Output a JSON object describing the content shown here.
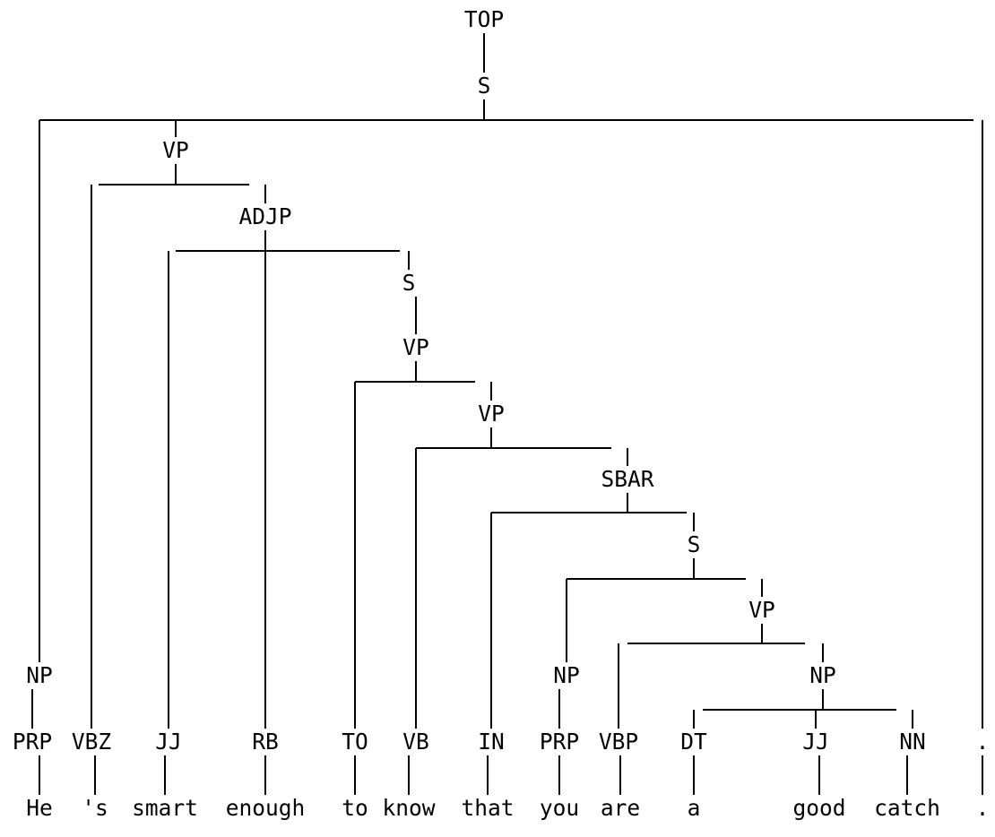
{
  "tree": {
    "nodes": [
      {
        "id": "top",
        "label": "TOP",
        "kind": "phrase"
      },
      {
        "id": "s1",
        "label": "S",
        "kind": "phrase"
      },
      {
        "id": "np_he",
        "label": "NP",
        "kind": "phrase"
      },
      {
        "id": "vp1",
        "label": "VP",
        "kind": "phrase"
      },
      {
        "id": "adjp",
        "label": "ADJP",
        "kind": "phrase"
      },
      {
        "id": "s2",
        "label": "S",
        "kind": "phrase"
      },
      {
        "id": "vp2",
        "label": "VP",
        "kind": "phrase"
      },
      {
        "id": "vp3",
        "label": "VP",
        "kind": "phrase"
      },
      {
        "id": "sbar",
        "label": "SBAR",
        "kind": "phrase"
      },
      {
        "id": "s3",
        "label": "S",
        "kind": "phrase"
      },
      {
        "id": "vp4",
        "label": "VP",
        "kind": "phrase"
      },
      {
        "id": "np_you",
        "label": "NP",
        "kind": "phrase"
      },
      {
        "id": "np_catch",
        "label": "NP",
        "kind": "phrase"
      },
      {
        "id": "t_prp1",
        "label": "PRP",
        "kind": "pos"
      },
      {
        "id": "t_vbz",
        "label": "VBZ",
        "kind": "pos"
      },
      {
        "id": "t_jj1",
        "label": "JJ",
        "kind": "pos"
      },
      {
        "id": "t_rb",
        "label": "RB",
        "kind": "pos"
      },
      {
        "id": "t_to",
        "label": "TO",
        "kind": "pos"
      },
      {
        "id": "t_vb",
        "label": "VB",
        "kind": "pos"
      },
      {
        "id": "t_in",
        "label": "IN",
        "kind": "pos"
      },
      {
        "id": "t_prp2",
        "label": "PRP",
        "kind": "pos"
      },
      {
        "id": "t_vbp",
        "label": "VBP",
        "kind": "pos"
      },
      {
        "id": "t_dt",
        "label": "DT",
        "kind": "pos"
      },
      {
        "id": "t_jj2",
        "label": "JJ",
        "kind": "pos"
      },
      {
        "id": "t_nn",
        "label": "NN",
        "kind": "pos"
      },
      {
        "id": "t_punct",
        "label": ".",
        "kind": "pos"
      },
      {
        "id": "w_he",
        "label": "He",
        "kind": "word"
      },
      {
        "id": "w_s",
        "label": "'s",
        "kind": "word"
      },
      {
        "id": "w_smart",
        "label": "smart",
        "kind": "word"
      },
      {
        "id": "w_enough",
        "label": "enough",
        "kind": "word"
      },
      {
        "id": "w_to",
        "label": "to",
        "kind": "word"
      },
      {
        "id": "w_know",
        "label": "know",
        "kind": "word"
      },
      {
        "id": "w_that",
        "label": "that",
        "kind": "word"
      },
      {
        "id": "w_you",
        "label": "you",
        "kind": "word"
      },
      {
        "id": "w_are",
        "label": "are",
        "kind": "word"
      },
      {
        "id": "w_a",
        "label": "a",
        "kind": "word"
      },
      {
        "id": "w_good",
        "label": "good",
        "kind": "word"
      },
      {
        "id": "w_catch",
        "label": "catch",
        "kind": "word"
      },
      {
        "id": "w_period",
        "label": ".",
        "kind": "word"
      }
    ],
    "edges": [
      [
        "top",
        "s1"
      ],
      [
        "s1",
        "np_he"
      ],
      [
        "s1",
        "vp1"
      ],
      [
        "s1",
        "t_punct"
      ],
      [
        "np_he",
        "t_prp1"
      ],
      [
        "vp1",
        "t_vbz"
      ],
      [
        "vp1",
        "adjp"
      ],
      [
        "adjp",
        "t_jj1"
      ],
      [
        "adjp",
        "t_rb"
      ],
      [
        "adjp",
        "s2"
      ],
      [
        "s2",
        "vp2"
      ],
      [
        "vp2",
        "t_to"
      ],
      [
        "vp2",
        "vp3"
      ],
      [
        "vp3",
        "t_vb"
      ],
      [
        "vp3",
        "sbar"
      ],
      [
        "sbar",
        "t_in"
      ],
      [
        "sbar",
        "s3"
      ],
      [
        "s3",
        "np_you"
      ],
      [
        "s3",
        "vp4"
      ],
      [
        "np_you",
        "t_prp2"
      ],
      [
        "vp4",
        "t_vbp"
      ],
      [
        "vp4",
        "np_catch"
      ],
      [
        "np_catch",
        "t_dt"
      ],
      [
        "np_catch",
        "t_jj2"
      ],
      [
        "np_catch",
        "t_nn"
      ],
      [
        "t_prp1",
        "w_he"
      ],
      [
        "t_vbz",
        "w_s"
      ],
      [
        "t_jj1",
        "w_smart"
      ],
      [
        "t_rb",
        "w_enough"
      ],
      [
        "t_to",
        "w_to"
      ],
      [
        "t_vb",
        "w_know"
      ],
      [
        "t_in",
        "w_that"
      ],
      [
        "t_prp2",
        "w_you"
      ],
      [
        "t_vbp",
        "w_are"
      ],
      [
        "t_dt",
        "w_a"
      ],
      [
        "t_jj2",
        "w_good"
      ],
      [
        "t_nn",
        "w_catch"
      ],
      [
        "t_punct",
        "w_period"
      ]
    ]
  }
}
